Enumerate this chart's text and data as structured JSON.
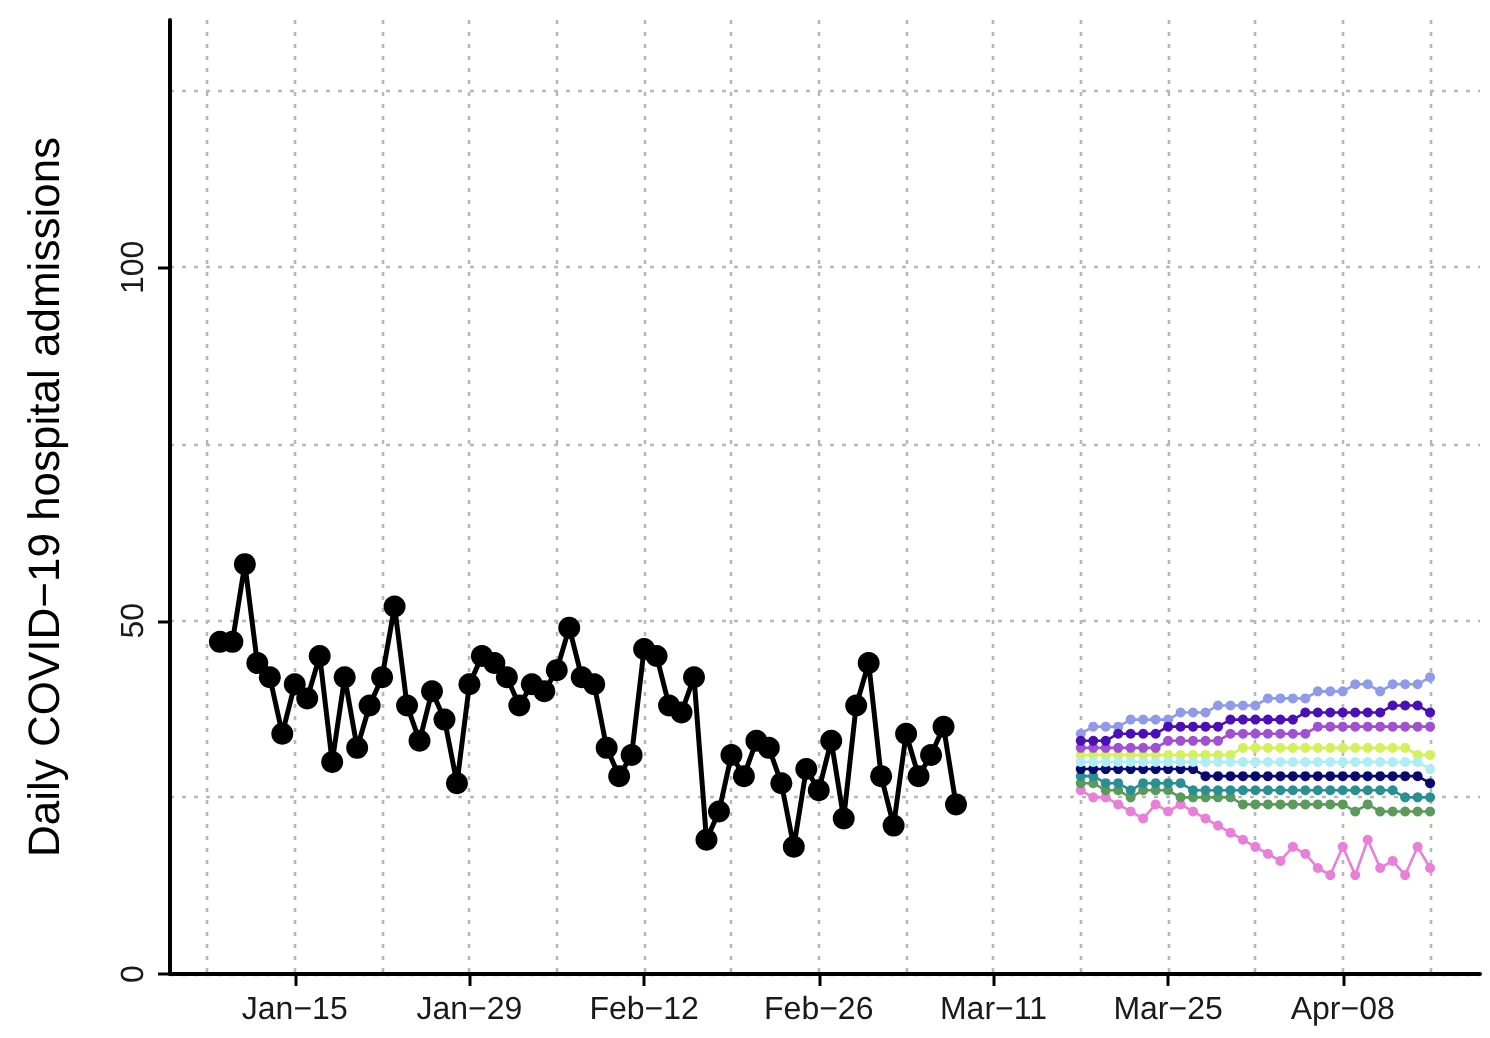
{
  "chart_data": {
    "type": "line",
    "ylabel": "Daily COVID−19 hospital admissions",
    "xlim": [
      "--01-05",
      "--04-19"
    ],
    "ylim": [
      0,
      135
    ],
    "xticks": [
      {
        "value": "--01-15",
        "label": "Jan−15"
      },
      {
        "value": "--01-29",
        "label": "Jan−29"
      },
      {
        "value": "--02-12",
        "label": "Feb−12"
      },
      {
        "value": "--02-26",
        "label": "Feb−26"
      },
      {
        "value": "--03-11",
        "label": "Mar−11"
      },
      {
        "value": "--03-25",
        "label": "Mar−25"
      },
      {
        "value": "--04-08",
        "label": "Apr−08"
      }
    ],
    "yticks": [
      0,
      50,
      100
    ],
    "grid": true,
    "marker": "circle",
    "line_style": "solid",
    "series": [
      {
        "color": "#e87fd8",
        "x": [
          "--03-18",
          "--03-19",
          "--03-20",
          "--03-21",
          "--03-22",
          "--03-23",
          "--03-24",
          "--03-25",
          "--03-26",
          "--03-27",
          "--03-28",
          "--03-29",
          "--03-30",
          "--03-31",
          "--04-01",
          "--04-02",
          "--04-03",
          "--04-04",
          "--04-05",
          "--04-06",
          "--04-07",
          "--04-08",
          "--04-09",
          "--04-10",
          "--04-11",
          "--04-12",
          "--04-13",
          "--04-14",
          "--04-15"
        ],
        "values": [
          26,
          25,
          25,
          24,
          23,
          22,
          24,
          23,
          24,
          23,
          22,
          21,
          20,
          19,
          18,
          17,
          16,
          18,
          17,
          15,
          14,
          18,
          14,
          19,
          15,
          16,
          14,
          18,
          15
        ]
      },
      {
        "color": "#5c9a5c",
        "x": [
          "--03-18",
          "--03-19",
          "--03-20",
          "--03-21",
          "--03-22",
          "--03-23",
          "--03-24",
          "--03-25",
          "--03-26",
          "--03-27",
          "--03-28",
          "--03-29",
          "--03-30",
          "--03-31",
          "--04-01",
          "--04-02",
          "--04-03",
          "--04-04",
          "--04-05",
          "--04-06",
          "--04-07",
          "--04-08",
          "--04-09",
          "--04-10",
          "--04-11",
          "--04-12",
          "--04-13",
          "--04-14",
          "--04-15"
        ],
        "values": [
          27,
          27,
          26,
          26,
          25,
          26,
          26,
          26,
          25,
          25,
          25,
          25,
          25,
          24,
          24,
          24,
          24,
          24,
          24,
          24,
          24,
          24,
          23,
          24,
          23,
          23,
          23,
          23,
          23
        ]
      },
      {
        "color": "#2a8f92",
        "x": [
          "--03-18",
          "--03-19",
          "--03-20",
          "--03-21",
          "--03-22",
          "--03-23",
          "--03-24",
          "--03-25",
          "--03-26",
          "--03-27",
          "--03-28",
          "--03-29",
          "--03-30",
          "--03-31",
          "--04-01",
          "--04-02",
          "--04-03",
          "--04-04",
          "--04-05",
          "--04-06",
          "--04-07",
          "--04-08",
          "--04-09",
          "--04-10",
          "--04-11",
          "--04-12",
          "--04-13",
          "--04-14",
          "--04-15"
        ],
        "values": [
          28,
          28,
          27,
          27,
          26,
          27,
          27,
          27,
          27,
          26,
          26,
          26,
          26,
          26,
          26,
          26,
          26,
          26,
          26,
          26,
          26,
          26,
          26,
          26,
          26,
          26,
          25,
          25,
          25
        ]
      },
      {
        "color": "#0a0a6e",
        "x": [
          "--03-18",
          "--03-19",
          "--03-20",
          "--03-21",
          "--03-22",
          "--03-23",
          "--03-24",
          "--03-25",
          "--03-26",
          "--03-27",
          "--03-28",
          "--03-29",
          "--03-30",
          "--03-31",
          "--04-01",
          "--04-02",
          "--04-03",
          "--04-04",
          "--04-05",
          "--04-06",
          "--04-07",
          "--04-08",
          "--04-09",
          "--04-10",
          "--04-11",
          "--04-12",
          "--04-13",
          "--04-14",
          "--04-15"
        ],
        "values": [
          29,
          29,
          29,
          29,
          29,
          29,
          29,
          29,
          29,
          29,
          28,
          28,
          28,
          28,
          28,
          28,
          28,
          28,
          28,
          28,
          28,
          28,
          28,
          28,
          28,
          28,
          28,
          28,
          27
        ]
      },
      {
        "color": "#d4f05a",
        "x": [
          "--03-18",
          "--03-19",
          "--03-20",
          "--03-21",
          "--03-22",
          "--03-23",
          "--03-24",
          "--03-25",
          "--03-26",
          "--03-27",
          "--03-28",
          "--03-29",
          "--03-30",
          "--03-31",
          "--04-01",
          "--04-02",
          "--04-03",
          "--04-04",
          "--04-05",
          "--04-06",
          "--04-07",
          "--04-08",
          "--04-09",
          "--04-10",
          "--04-11",
          "--04-12",
          "--04-13",
          "--04-14",
          "--04-15"
        ],
        "values": [
          31,
          31,
          31,
          31,
          31,
          31,
          31,
          31,
          31,
          31,
          31,
          31,
          31,
          32,
          32,
          32,
          32,
          32,
          32,
          32,
          32,
          32,
          32,
          32,
          32,
          32,
          32,
          31,
          31
        ]
      },
      {
        "color": "#b0ecf4",
        "x": [
          "--03-18",
          "--03-19",
          "--03-20",
          "--03-21",
          "--03-22",
          "--03-23",
          "--03-24",
          "--03-25",
          "--03-26",
          "--03-27",
          "--03-28",
          "--03-29",
          "--03-30",
          "--03-31",
          "--04-01",
          "--04-02",
          "--04-03",
          "--04-04",
          "--04-05",
          "--04-06",
          "--04-07",
          "--04-08",
          "--04-09",
          "--04-10",
          "--04-11",
          "--04-12",
          "--04-13",
          "--04-14",
          "--04-15"
        ],
        "values": [
          30,
          30,
          30,
          30,
          30,
          30,
          30,
          30,
          30,
          30,
          30,
          30,
          30,
          30,
          30,
          30,
          30,
          30,
          30,
          30,
          30,
          30,
          30,
          30,
          30,
          30,
          30,
          30,
          29
        ]
      },
      {
        "color": "#a050d0",
        "x": [
          "--03-18",
          "--03-19",
          "--03-20",
          "--03-21",
          "--03-22",
          "--03-23",
          "--03-24",
          "--03-25",
          "--03-26",
          "--03-27",
          "--03-28",
          "--03-29",
          "--03-30",
          "--03-31",
          "--04-01",
          "--04-02",
          "--04-03",
          "--04-04",
          "--04-05",
          "--04-06",
          "--04-07",
          "--04-08",
          "--04-09",
          "--04-10",
          "--04-11",
          "--04-12",
          "--04-13",
          "--04-14",
          "--04-15"
        ],
        "values": [
          32,
          32,
          32,
          32,
          32,
          32,
          32,
          33,
          33,
          33,
          33,
          33,
          34,
          34,
          34,
          34,
          34,
          34,
          34,
          35,
          35,
          35,
          35,
          35,
          35,
          35,
          35,
          35,
          35
        ]
      },
      {
        "color": "#8f9ae8",
        "x": [
          "--03-18",
          "--03-19",
          "--03-20",
          "--03-21",
          "--03-22",
          "--03-23",
          "--03-24",
          "--03-25",
          "--03-26",
          "--03-27",
          "--03-28",
          "--03-29",
          "--03-30",
          "--03-31",
          "--04-01",
          "--04-02",
          "--04-03",
          "--04-04",
          "--04-05",
          "--04-06",
          "--04-07",
          "--04-08",
          "--04-09",
          "--04-10",
          "--04-11",
          "--04-12",
          "--04-13",
          "--04-14",
          "--04-15"
        ],
        "values": [
          34,
          35,
          35,
          35,
          36,
          36,
          36,
          36,
          37,
          37,
          37,
          38,
          38,
          38,
          38,
          39,
          39,
          39,
          39,
          40,
          40,
          40,
          41,
          41,
          40,
          41,
          41,
          41,
          42
        ]
      },
      {
        "color": "#4b0fb8",
        "x": [
          "--03-18",
          "--03-19",
          "--03-20",
          "--03-21",
          "--03-22",
          "--03-23",
          "--03-24",
          "--03-25",
          "--03-26",
          "--03-27",
          "--03-28",
          "--03-29",
          "--03-30",
          "--03-31",
          "--04-01",
          "--04-02",
          "--04-03",
          "--04-04",
          "--04-05",
          "--04-06",
          "--04-07",
          "--04-08",
          "--04-09",
          "--04-10",
          "--04-11",
          "--04-12",
          "--04-13",
          "--04-14",
          "--04-15"
        ],
        "values": [
          33,
          33,
          33,
          34,
          34,
          34,
          34,
          35,
          35,
          35,
          35,
          35,
          36,
          36,
          36,
          36,
          36,
          36,
          37,
          37,
          37,
          37,
          37,
          37,
          37,
          38,
          38,
          38,
          37
        ]
      },
      {
        "color": "#000000",
        "x": [
          "--01-09",
          "--01-10",
          "--01-11",
          "--01-12",
          "--01-13",
          "--01-14",
          "--01-15",
          "--01-16",
          "--01-17",
          "--01-18",
          "--01-19",
          "--01-20",
          "--01-21",
          "--01-22",
          "--01-23",
          "--01-24",
          "--01-25",
          "--01-26",
          "--01-27",
          "--01-28",
          "--01-29",
          "--01-30",
          "--01-31",
          "--02-01",
          "--02-02",
          "--02-03",
          "--02-04",
          "--02-05",
          "--02-06",
          "--02-07",
          "--02-08",
          "--02-09",
          "--02-10",
          "--02-11",
          "--02-12",
          "--02-13",
          "--02-14",
          "--02-15",
          "--02-16",
          "--02-17",
          "--02-18",
          "--02-19",
          "--02-20",
          "--02-21",
          "--02-22",
          "--02-23",
          "--02-24",
          "--02-25",
          "--02-26",
          "--02-27",
          "--02-28",
          "--02-29",
          "--03-01",
          "--03-02",
          "--03-03",
          "--03-04",
          "--03-05",
          "--03-06",
          "--03-07",
          "--03-08"
        ],
        "values": [
          47,
          47,
          58,
          44,
          42,
          34,
          41,
          39,
          45,
          30,
          42,
          32,
          38,
          42,
          52,
          38,
          33,
          40,
          36,
          27,
          41,
          45,
          44,
          42,
          38,
          41,
          40,
          43,
          49,
          42,
          41,
          32,
          28,
          31,
          46,
          45,
          38,
          37,
          42,
          19,
          23,
          31,
          28,
          33,
          32,
          27,
          18,
          29,
          26,
          33,
          22,
          38,
          44,
          28,
          21,
          34,
          28,
          31,
          35,
          24
        ]
      }
    ]
  }
}
